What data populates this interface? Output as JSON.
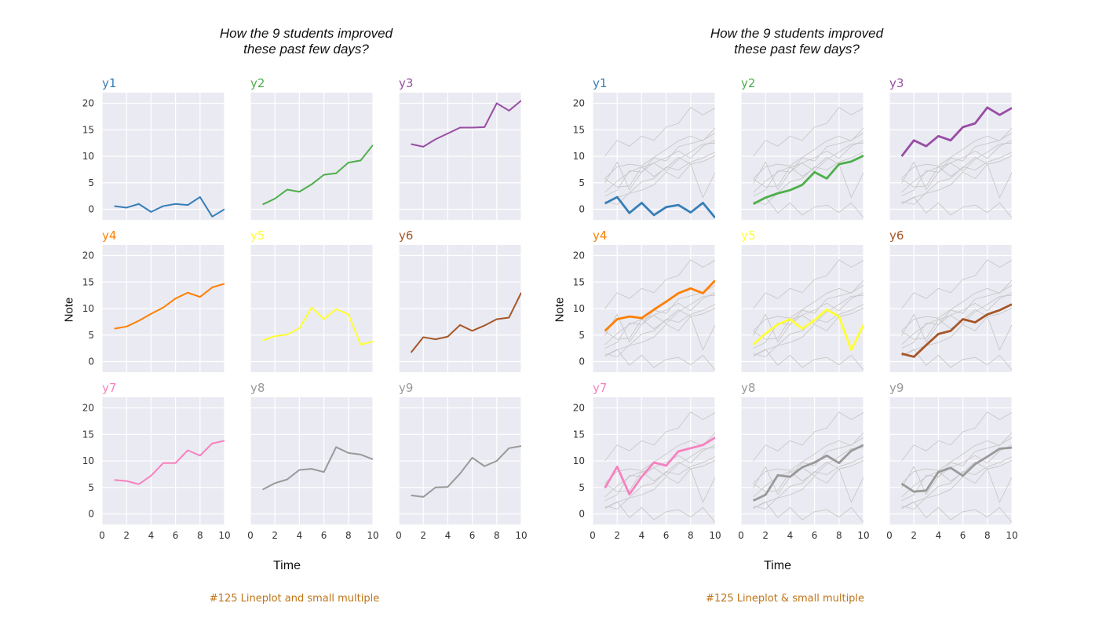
{
  "figures": [
    {
      "title": "How the 9 students improved\nthese past few days?",
      "ylabel": "Note",
      "xlabel": "Time",
      "caption": "#125 Lineplot and small multiple"
    },
    {
      "title": "How the 9 students improved\nthese past few days?",
      "ylabel": "Note",
      "xlabel": "Time",
      "caption": "#125 Lineplot & small multiple"
    }
  ],
  "colors": {
    "y1": "#377eb8",
    "y2": "#4daf4a",
    "y3": "#984ea3",
    "y4": "#ff7f00",
    "y5": "#ffff33",
    "y6": "#a65628",
    "y7": "#f781bf",
    "y8": "#999999",
    "y9": "#999999",
    "panel_bg": "#eaeaf2",
    "grid": "#ffffff",
    "context": "#c8c8c8"
  },
  "chart_data": [
    {
      "type": "line",
      "title": "How the 9 students improved these past few days?",
      "xlabel": "Time",
      "ylabel": "Note",
      "xlim": [
        0,
        10
      ],
      "ylim": [
        -2,
        22
      ],
      "xticks": [
        0,
        2,
        4,
        6,
        8,
        10
      ],
      "yticks": [
        0,
        5,
        10,
        15,
        20
      ],
      "grid": true,
      "layout": "3x3 small multiples",
      "x": [
        1,
        2,
        3,
        4,
        5,
        6,
        7,
        8,
        9,
        10
      ],
      "series": [
        {
          "name": "y1",
          "values": [
            0.6,
            0.3,
            1.0,
            -0.5,
            0.6,
            1.0,
            0.8,
            2.3,
            -1.4,
            0.0
          ]
        },
        {
          "name": "y2",
          "values": [
            0.9,
            2.0,
            3.7,
            3.3,
            4.7,
            6.5,
            6.8,
            8.8,
            9.2,
            12.1
          ]
        },
        {
          "name": "y3",
          "values": [
            12.3,
            11.8,
            13.2,
            14.3,
            15.4,
            15.4,
            15.5,
            20.0,
            18.6,
            20.5
          ]
        },
        {
          "name": "y4",
          "values": [
            6.2,
            6.6,
            7.7,
            9.0,
            10.2,
            11.9,
            13.0,
            12.2,
            14.0,
            14.7
          ]
        },
        {
          "name": "y5",
          "values": [
            4.0,
            4.8,
            5.1,
            6.3,
            10.2,
            8.0,
            9.9,
            8.9,
            3.2,
            3.8
          ]
        },
        {
          "name": "y6",
          "values": [
            1.7,
            4.6,
            4.2,
            4.7,
            6.9,
            5.8,
            6.8,
            8.0,
            8.3,
            13.0
          ]
        },
        {
          "name": "y7",
          "values": [
            6.4,
            6.2,
            5.6,
            7.2,
            9.6,
            9.6,
            12.0,
            11.0,
            13.3,
            13.8
          ]
        },
        {
          "name": "y8",
          "values": [
            4.6,
            5.8,
            6.5,
            8.3,
            8.5,
            7.9,
            12.6,
            11.5,
            11.2,
            10.3
          ]
        },
        {
          "name": "y9",
          "values": [
            3.5,
            3.2,
            5.0,
            5.1,
            7.6,
            10.6,
            9.0,
            10.0,
            12.4,
            12.8
          ]
        }
      ]
    },
    {
      "type": "line",
      "title": "How the 9 students improved these past few days?",
      "xlabel": "Time",
      "ylabel": "Note",
      "xlim": [
        0,
        10
      ],
      "ylim": [
        -2,
        22
      ],
      "xticks": [
        0,
        2,
        4,
        6,
        8,
        10
      ],
      "yticks": [
        0,
        5,
        10,
        15,
        20
      ],
      "grid": true,
      "layout": "3x3 small multiples, other series in grey",
      "x": [
        1,
        2,
        3,
        4,
        5,
        6,
        7,
        8,
        9,
        10
      ],
      "series": [
        {
          "name": "y1",
          "values": [
            1.1,
            2.3,
            -0.7,
            1.2,
            -1.1,
            0.4,
            0.8,
            -0.6,
            1.2,
            -1.6
          ]
        },
        {
          "name": "y2",
          "values": [
            1.0,
            2.2,
            3.0,
            3.6,
            4.6,
            7.0,
            5.8,
            8.5,
            9.0,
            10.1
          ]
        },
        {
          "name": "y3",
          "values": [
            10.0,
            13.0,
            11.9,
            13.8,
            13.0,
            15.5,
            16.2,
            19.2,
            17.8,
            19.1
          ]
        },
        {
          "name": "y4",
          "values": [
            5.8,
            8.0,
            8.5,
            8.2,
            9.8,
            11.3,
            12.9,
            13.8,
            12.9,
            15.3
          ]
        },
        {
          "name": "y5",
          "values": [
            3.2,
            5.3,
            7.0,
            8.0,
            6.2,
            7.8,
            9.8,
            8.5,
            2.2,
            6.9
          ]
        },
        {
          "name": "y6",
          "values": [
            1.5,
            0.9,
            3.1,
            5.2,
            5.8,
            8.0,
            7.4,
            8.9,
            9.7,
            10.8
          ]
        },
        {
          "name": "y7",
          "values": [
            4.9,
            8.9,
            3.7,
            7.0,
            9.7,
            9.1,
            11.8,
            12.4,
            13.0,
            14.4
          ]
        },
        {
          "name": "y8",
          "values": [
            2.5,
            3.6,
            7.3,
            7.0,
            8.8,
            9.7,
            11.0,
            9.6,
            11.9,
            13.0
          ]
        },
        {
          "name": "y9",
          "values": [
            5.7,
            4.2,
            4.4,
            7.9,
            8.7,
            7.2,
            9.4,
            10.8,
            12.3,
            12.5
          ]
        }
      ]
    }
  ]
}
